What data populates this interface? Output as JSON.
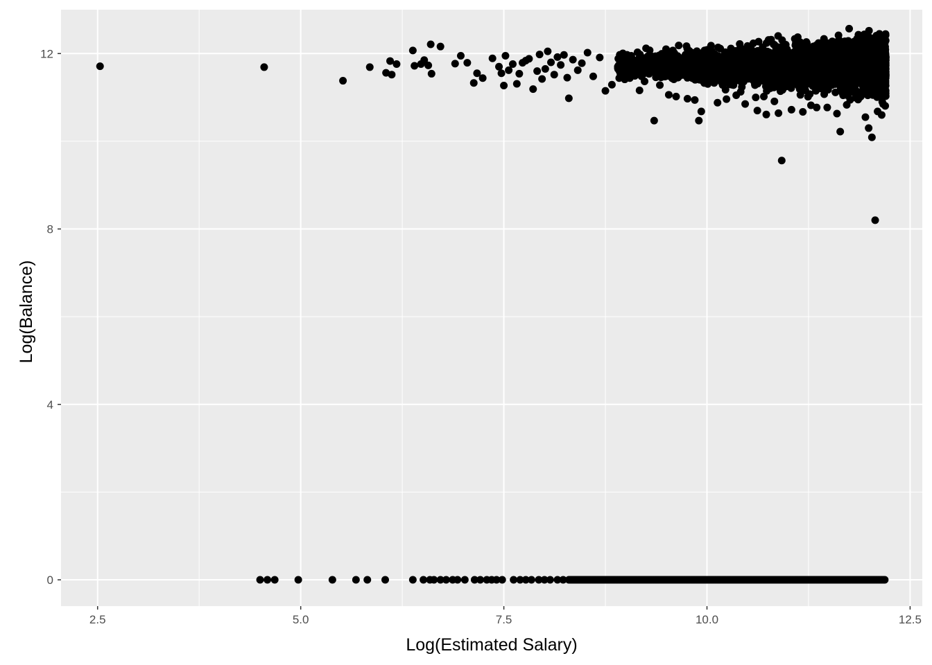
{
  "chart_data": {
    "type": "scatter",
    "title": "",
    "xlabel": "Log(Estimated Salary)",
    "ylabel": "Log(Balance)",
    "xlim": [
      2.05,
      12.65
    ],
    "ylim": [
      -0.6,
      13.0
    ],
    "x_ticks": [
      2.5,
      5.0,
      7.5,
      10.0,
      12.5
    ],
    "x_tick_labels": [
      "2.5",
      "5.0",
      "7.5",
      "10.0",
      "12.5"
    ],
    "y_ticks": [
      0,
      4,
      8,
      12
    ],
    "y_tick_labels": [
      "0",
      "4",
      "8",
      "12"
    ],
    "grid": true,
    "legend": "none",
    "colors": {
      "panel": "#ebebeb",
      "grid": "#ffffff",
      "point": "#000000",
      "tick": "#4d4d4d",
      "axis_title": "#000000"
    },
    "series": [
      {
        "points": [
          [
            2.53,
            11.71
          ],
          [
            4.55,
            11.69
          ],
          [
            5.52,
            11.38
          ],
          [
            5.85,
            11.69
          ],
          [
            6.05,
            11.56
          ],
          [
            6.1,
            11.83
          ],
          [
            6.12,
            11.52
          ],
          [
            6.18,
            11.76
          ],
          [
            6.38,
            12.07
          ],
          [
            6.4,
            11.72
          ],
          [
            6.48,
            11.76
          ],
          [
            6.52,
            11.85
          ],
          [
            6.57,
            11.73
          ],
          [
            6.61,
            11.54
          ],
          [
            6.6,
            12.21
          ],
          [
            6.72,
            12.16
          ],
          [
            6.9,
            11.77
          ],
          [
            6.97,
            11.95
          ],
          [
            7.05,
            11.79
          ],
          [
            7.13,
            11.33
          ],
          [
            7.17,
            11.55
          ],
          [
            7.24,
            11.44
          ],
          [
            7.36,
            11.89
          ],
          [
            7.44,
            11.7
          ],
          [
            7.47,
            11.55
          ],
          [
            7.5,
            11.27
          ],
          [
            7.52,
            11.95
          ],
          [
            7.56,
            11.62
          ],
          [
            7.61,
            11.76
          ],
          [
            7.66,
            11.31
          ],
          [
            7.69,
            11.54
          ],
          [
            7.73,
            11.79
          ],
          [
            7.77,
            11.84
          ],
          [
            7.81,
            11.88
          ],
          [
            7.86,
            11.19
          ],
          [
            7.91,
            11.6
          ],
          [
            7.94,
            11.98
          ],
          [
            7.97,
            11.42
          ],
          [
            8.01,
            11.65
          ],
          [
            8.04,
            12.05
          ],
          [
            8.08,
            11.8
          ],
          [
            8.12,
            11.52
          ],
          [
            8.16,
            11.92
          ],
          [
            8.2,
            11.74
          ],
          [
            8.24,
            11.97
          ],
          [
            8.28,
            11.45
          ],
          [
            8.3,
            10.98
          ],
          [
            8.35,
            11.86
          ],
          [
            8.41,
            11.62
          ],
          [
            8.46,
            11.78
          ],
          [
            8.53,
            12.02
          ],
          [
            8.6,
            11.48
          ],
          [
            8.68,
            11.91
          ],
          [
            8.75,
            11.15
          ],
          [
            8.83,
            11.29
          ],
          [
            8.92,
            11.86
          ],
          [
            9.05,
            11.44
          ],
          [
            9.17,
            11.16
          ],
          [
            9.25,
            12.12
          ],
          [
            9.35,
            10.47
          ],
          [
            9.42,
            11.28
          ],
          [
            9.53,
            11.06
          ],
          [
            9.62,
            11.02
          ],
          [
            9.76,
            10.97
          ],
          [
            9.85,
            10.94
          ],
          [
            9.9,
            10.47
          ],
          [
            9.93,
            10.68
          ],
          [
            10.05,
            12.18
          ],
          [
            10.13,
            10.88
          ],
          [
            10.24,
            10.96
          ],
          [
            10.36,
            11.05
          ],
          [
            10.47,
            10.85
          ],
          [
            10.6,
            11.0
          ],
          [
            10.62,
            10.7
          ],
          [
            10.7,
            11.02
          ],
          [
            10.73,
            10.61
          ],
          [
            10.83,
            10.91
          ],
          [
            10.88,
            10.64
          ],
          [
            10.92,
            9.56
          ],
          [
            11.04,
            10.72
          ],
          [
            11.18,
            10.67
          ],
          [
            11.28,
            10.82
          ],
          [
            11.35,
            10.77
          ],
          [
            11.48,
            10.77
          ],
          [
            11.6,
            10.63
          ],
          [
            11.64,
            10.22
          ],
          [
            11.72,
            10.83
          ],
          [
            11.86,
            10.95
          ],
          [
            11.95,
            10.55
          ],
          [
            11.99,
            10.3
          ],
          [
            12.03,
            10.09
          ],
          [
            12.07,
            8.2
          ],
          [
            12.1,
            10.68
          ],
          [
            12.15,
            10.6
          ],
          [
            12.18,
            12.24
          ],
          [
            9.49,
            11.8
          ],
          [
            9.58,
            12.07
          ],
          [
            9.67,
            11.5
          ],
          [
            9.8,
            11.9
          ],
          [
            9.96,
            11.62
          ],
          [
            10.09,
            11.99
          ],
          [
            10.2,
            11.39
          ],
          [
            10.31,
            11.72
          ],
          [
            10.44,
            12.06
          ],
          [
            10.55,
            11.48
          ],
          [
            10.66,
            11.84
          ],
          [
            10.78,
            11.21
          ],
          [
            10.9,
            11.99
          ],
          [
            11.01,
            11.3
          ],
          [
            11.12,
            11.67
          ],
          [
            11.23,
            12.1
          ],
          [
            11.34,
            11.15
          ],
          [
            11.44,
            11.79
          ],
          [
            11.56,
            12.16
          ],
          [
            11.67,
            11.09
          ],
          [
            11.77,
            11.58
          ],
          [
            11.88,
            12.3
          ],
          [
            11.97,
            11.17
          ],
          [
            12.05,
            11.87
          ],
          [
            12.13,
            11.42
          ],
          [
            4.5,
            0
          ],
          [
            4.59,
            0
          ],
          [
            4.68,
            0
          ],
          [
            4.97,
            0
          ],
          [
            5.39,
            0
          ],
          [
            5.68,
            0
          ],
          [
            5.82,
            0
          ],
          [
            6.04,
            0
          ],
          [
            6.38,
            0
          ],
          [
            6.51,
            0
          ],
          [
            6.59,
            0
          ],
          [
            6.64,
            0
          ],
          [
            6.72,
            0
          ],
          [
            6.79,
            0
          ],
          [
            6.87,
            0
          ],
          [
            6.93,
            0
          ],
          [
            7.02,
            0
          ],
          [
            7.14,
            0
          ],
          [
            7.21,
            0
          ],
          [
            7.29,
            0
          ],
          [
            7.35,
            0
          ],
          [
            7.41,
            0
          ],
          [
            7.48,
            0
          ],
          [
            7.62,
            0
          ],
          [
            7.7,
            0
          ],
          [
            7.77,
            0
          ],
          [
            7.84,
            0
          ],
          [
            7.93,
            0
          ],
          [
            8.0,
            0
          ],
          [
            8.07,
            0
          ],
          [
            8.16,
            0
          ],
          [
            8.23,
            0
          ],
          [
            8.31,
            0
          ]
        ]
      }
    ]
  }
}
